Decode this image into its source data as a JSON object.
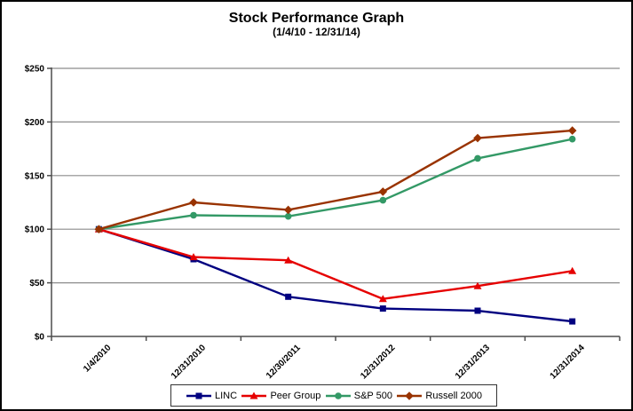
{
  "chart_data": {
    "type": "line",
    "title": "Stock Performance Graph",
    "subtitle": "(1/4/10 - 12/31/14)",
    "categories": [
      "1/4/2010",
      "12/31/2010",
      "12/30/2011",
      "12/31/2012",
      "12/31/2013",
      "12/31/2014"
    ],
    "series": [
      {
        "name": "LINC",
        "color": "#000080",
        "marker": "square",
        "values": [
          100,
          72,
          37,
          26,
          24,
          14
        ]
      },
      {
        "name": "Peer Group",
        "color": "#e60000",
        "marker": "triangle",
        "values": [
          100,
          74,
          71,
          35,
          47,
          61
        ]
      },
      {
        "name": "S&P 500",
        "color": "#339966",
        "marker": "circle",
        "values": [
          100,
          113,
          112,
          127,
          166,
          184
        ]
      },
      {
        "name": "Russell 2000",
        "color": "#993300",
        "marker": "diamond",
        "values": [
          100,
          125,
          118,
          135,
          185,
          192
        ]
      }
    ],
    "xlabel": "",
    "ylabel": "",
    "ylim": [
      0,
      250
    ],
    "y_ticks": [
      "$0",
      "$50",
      "$100",
      "$150",
      "$200",
      "$250"
    ],
    "y_tick_values": [
      0,
      50,
      100,
      150,
      200,
      250
    ],
    "grid": true,
    "legend_position": "bottom",
    "x_label_rotation": -45
  },
  "colors": {
    "grid": "#8c8c8c",
    "axis": "#4d4d4d",
    "text": "#000000",
    "background": "#ffffff",
    "frame_border": "#000000",
    "legend_border": "#333333"
  }
}
